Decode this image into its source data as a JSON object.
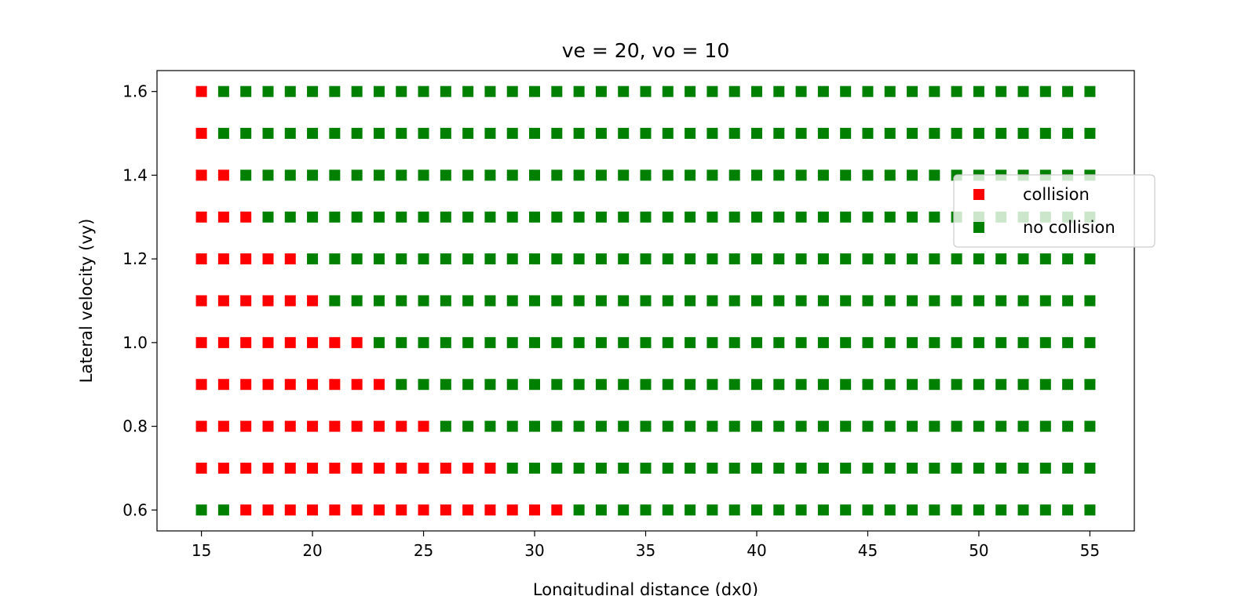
{
  "chart_data": {
    "type": "scatter",
    "title": "ve = 20, vo = 10",
    "xlabel": "Longitudinal distance (dx0)",
    "ylabel": "Lateral velocity (vy)",
    "xlim": [
      13,
      57
    ],
    "ylim": [
      0.55,
      1.65
    ],
    "xticks": [
      15,
      20,
      25,
      30,
      35,
      40,
      45,
      50,
      55
    ],
    "yticks": [
      0.6,
      0.8,
      1.0,
      1.2,
      1.4,
      1.6
    ],
    "xtick_labels": [
      "15",
      "20",
      "25",
      "30",
      "35",
      "40",
      "45",
      "50",
      "55"
    ],
    "ytick_labels": [
      "0.6",
      "0.8",
      "1.0",
      "1.2",
      "1.4",
      "1.6"
    ],
    "grid": false,
    "legend_position": "right",
    "x_range": [
      15,
      55
    ],
    "collision_x_ranges": [
      {
        "vy": 0.6,
        "x": [
          17,
          31
        ]
      },
      {
        "vy": 0.7,
        "x": [
          15,
          28
        ]
      },
      {
        "vy": 0.8,
        "x": [
          15,
          25
        ]
      },
      {
        "vy": 0.9,
        "x": [
          15,
          23
        ]
      },
      {
        "vy": 1.0,
        "x": [
          15,
          22
        ]
      },
      {
        "vy": 1.1,
        "x": [
          15,
          20
        ]
      },
      {
        "vy": 1.2,
        "x": [
          15,
          19
        ]
      },
      {
        "vy": 1.3,
        "x": [
          15,
          17
        ]
      },
      {
        "vy": 1.4,
        "x": [
          15,
          16
        ]
      },
      {
        "vy": 1.5,
        "x": [
          15,
          15
        ]
      },
      {
        "vy": 1.6,
        "x": [
          15,
          15
        ]
      }
    ],
    "series": [
      {
        "name": "collision",
        "color": "#ff0000",
        "marker": "square"
      },
      {
        "name": "no collision",
        "color": "#008000",
        "marker": "square"
      }
    ]
  }
}
